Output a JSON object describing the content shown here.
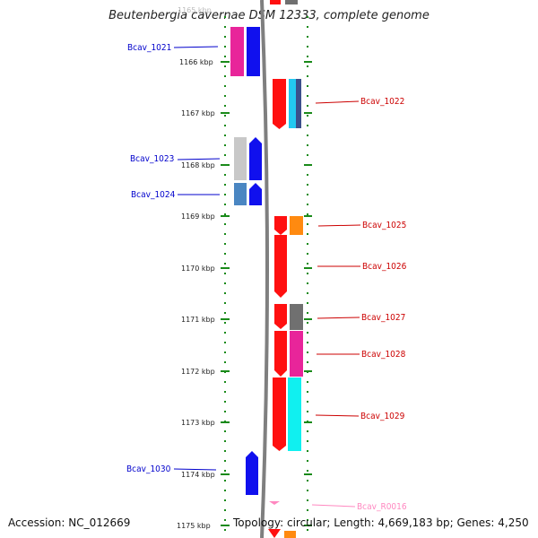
{
  "title": "Beutenbergia cavernae DSM 12333, complete genome",
  "accession_text": "Accession: NC_012669",
  "topology_text": "Topology: circular; Length: 4,669,183 bp; Genes: 4,250",
  "ruler": {
    "top_label": "1165 kbp",
    "labels": [
      "1166 kbp",
      "1167 kbp",
      "1168 kbp",
      "1169 kbp",
      "1170 kbp",
      "1171 kbp",
      "1172 kbp",
      "1173 kbp",
      "1174 kbp",
      "1175 kbp"
    ]
  },
  "colors": {
    "left_label": "#0000cc",
    "right_label": "#cc0000",
    "rna_label": "#ff88c0",
    "ruler": "#1a8a1a",
    "backbone": "#808080"
  },
  "left_labels": [
    "Bcav_1021",
    "Bcav_1023",
    "Bcav_1024",
    "Bcav_1030"
  ],
  "right_labels": [
    "Bcav_1022",
    "Bcav_1025",
    "Bcav_1026",
    "Bcav_1027",
    "Bcav_1028",
    "Bcav_1029"
  ],
  "rna_label": "Bcav_R0016"
}
